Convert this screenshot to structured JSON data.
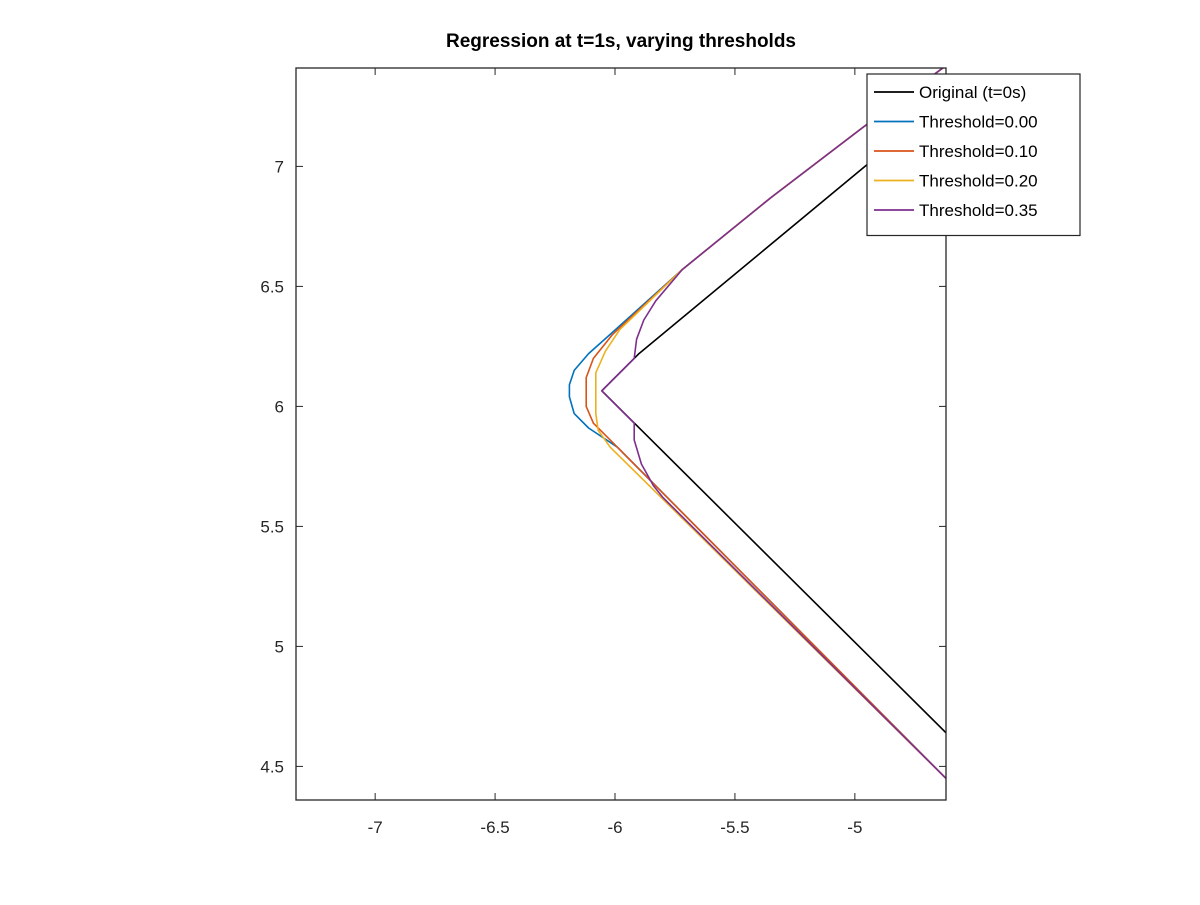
{
  "chart_data": {
    "type": "line",
    "title": "Regression at t=1s, varying thresholds",
    "xlabel": "",
    "ylabel": "",
    "xlim": [
      -7.33,
      -4.62
    ],
    "ylim": [
      4.36,
      7.41
    ],
    "x_ticks": [
      -7,
      -6.5,
      -6,
      -5.5,
      -5
    ],
    "x_tick_labels": [
      "-7",
      "-6.5",
      "-6",
      "-5.5",
      "-5"
    ],
    "y_ticks": [
      4.5,
      5,
      5.5,
      6,
      6.5,
      7
    ],
    "y_tick_labels": [
      "4.5",
      "5",
      "5.5",
      "6",
      "6.5",
      "7"
    ],
    "grid": false,
    "legend_position": "top-right",
    "series": [
      {
        "name": "Original (t=0s)",
        "color": "#000000",
        "points": [
          [
            -4.62,
            4.64
          ],
          [
            -6.055,
            6.065
          ],
          [
            -5.9,
            6.22
          ],
          [
            -4.97,
            6.99
          ],
          [
            -4.62,
            7.28
          ]
        ]
      },
      {
        "name": "Threshold=0.00",
        "color": "#0072bd",
        "points": [
          [
            -4.62,
            4.45
          ],
          [
            -5.99,
            5.83
          ],
          [
            -6.11,
            5.91
          ],
          [
            -6.17,
            5.97
          ],
          [
            -6.19,
            6.04
          ],
          [
            -6.19,
            6.09
          ],
          [
            -6.17,
            6.15
          ],
          [
            -6.11,
            6.22
          ],
          [
            -6.02,
            6.3
          ],
          [
            -5.72,
            6.57
          ],
          [
            -5.35,
            6.87
          ],
          [
            -4.97,
            7.16
          ],
          [
            -4.62,
            7.42
          ]
        ]
      },
      {
        "name": "Threshold=0.10",
        "color": "#d95319",
        "points": [
          [
            -4.62,
            4.45
          ],
          [
            -6.0,
            5.84
          ],
          [
            -6.09,
            5.93
          ],
          [
            -6.12,
            6.0
          ],
          [
            -6.12,
            6.12
          ],
          [
            -6.09,
            6.2
          ],
          [
            -6.01,
            6.3
          ],
          [
            -5.72,
            6.57
          ],
          [
            -5.35,
            6.87
          ],
          [
            -4.97,
            7.16
          ],
          [
            -4.62,
            7.42
          ]
        ]
      },
      {
        "name": "Threshold=0.20",
        "color": "#edb120",
        "points": [
          [
            -4.62,
            4.45
          ],
          [
            -6.02,
            5.83
          ],
          [
            -6.07,
            5.9
          ],
          [
            -6.08,
            5.97
          ],
          [
            -6.08,
            6.14
          ],
          [
            -6.04,
            6.23
          ],
          [
            -5.98,
            6.32
          ],
          [
            -5.72,
            6.57
          ],
          [
            -5.35,
            6.87
          ],
          [
            -4.97,
            7.16
          ],
          [
            -4.62,
            7.42
          ]
        ]
      },
      {
        "name": "Threshold=0.35",
        "color": "#7e2f8e",
        "points": [
          [
            -4.62,
            4.45
          ],
          [
            -5.8,
            5.62
          ],
          [
            -5.84,
            5.67
          ],
          [
            -5.89,
            5.76
          ],
          [
            -5.92,
            5.86
          ],
          [
            -5.92,
            5.93
          ],
          [
            -6.055,
            6.065
          ],
          [
            -5.92,
            6.2
          ],
          [
            -5.91,
            6.28
          ],
          [
            -5.88,
            6.36
          ],
          [
            -5.83,
            6.44
          ],
          [
            -5.72,
            6.57
          ],
          [
            -5.35,
            6.87
          ],
          [
            -4.97,
            7.16
          ],
          [
            -4.62,
            7.42
          ]
        ]
      }
    ]
  }
}
